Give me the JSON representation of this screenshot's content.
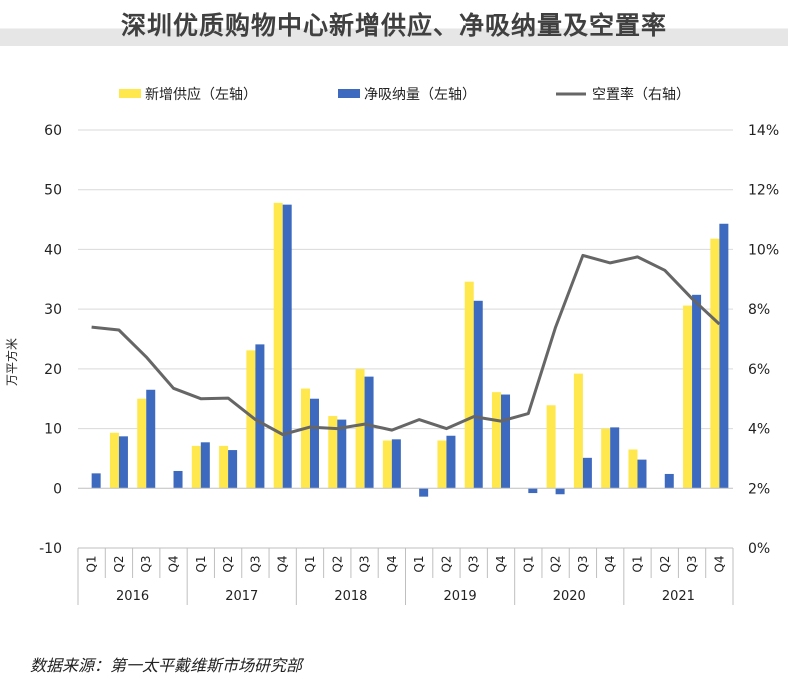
{
  "chart_data": {
    "type": "bar",
    "title": "深圳优质购物中心新增供应、净吸纳量及空置率",
    "ylabel": "万平方米",
    "ylim": [
      -10,
      60
    ],
    "y_ticks": [
      "60",
      "50",
      "40",
      "30",
      "20",
      "10",
      "0",
      "-10"
    ],
    "y2lim": [
      0,
      14
    ],
    "y2_ticks": [
      "14%",
      "12%",
      "10%",
      "8%",
      "6%",
      "4%",
      "2%",
      "0%"
    ],
    "years": [
      "2016",
      "2017",
      "2018",
      "2019",
      "2020",
      "2021"
    ],
    "quarters": [
      "Q1",
      "Q2",
      "Q3",
      "Q4"
    ],
    "legend_position": "top",
    "grid": true,
    "series": [
      {
        "name": "新增供应（左轴）",
        "kind": "bar",
        "axis": "left",
        "color": "#FFE84D",
        "values": [
          0,
          9.3,
          15,
          0,
          7.1,
          7.1,
          23.1,
          47.8,
          16.7,
          12.1,
          20,
          8,
          0,
          8,
          34.6,
          16.1,
          0,
          13.9,
          19.2,
          10,
          6.5,
          0,
          30.6,
          41.8
        ]
      },
      {
        "name": "净吸纳量（左轴）",
        "kind": "bar",
        "axis": "left",
        "color": "#3D6ABF",
        "values": [
          2.5,
          8.7,
          16.5,
          2.9,
          7.7,
          6.4,
          24.1,
          47.5,
          15,
          11.5,
          18.7,
          8.2,
          -1.4,
          8.8,
          31.4,
          15.7,
          -0.8,
          -1,
          5.1,
          10.2,
          4.8,
          2.4,
          32.4,
          44.3
        ]
      },
      {
        "name": "空置率（右轴）",
        "kind": "line",
        "axis": "right",
        "color": "#666666",
        "values": [
          7.4,
          7.3,
          6.4,
          5.35,
          5,
          5.02,
          4.3,
          3.8,
          4.05,
          4,
          4.15,
          3.95,
          4.3,
          4,
          4.4,
          4.25,
          4.5,
          7.4,
          9.8,
          9.55,
          9.75,
          9.3,
          8.35,
          7.5
        ]
      }
    ]
  },
  "source_text": "数据来源：第一太平戴维斯市场研究部"
}
